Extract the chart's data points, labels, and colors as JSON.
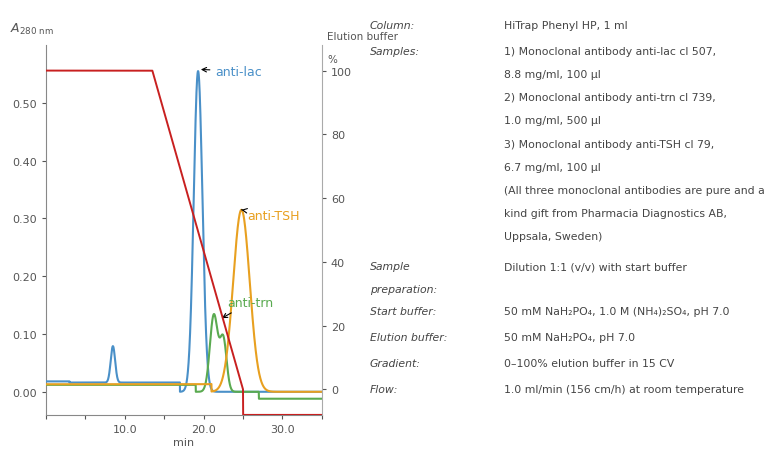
{
  "xlim": [
    0,
    35
  ],
  "ylim_left": [
    -0.04,
    0.6
  ],
  "ylim_right": [
    -8,
    108
  ],
  "xlabel": "min",
  "xticks": [
    0,
    5,
    10,
    15,
    20,
    25,
    30,
    35
  ],
  "xtick_labels": [
    "",
    "",
    "10.0",
    "",
    "20.0",
    "",
    "30.0",
    ""
  ],
  "yticks_left": [
    0.0,
    0.1,
    0.2,
    0.3,
    0.4,
    0.5
  ],
  "yticks_right": [
    0,
    20,
    40,
    60,
    80,
    100
  ],
  "bg_color": "#ffffff",
  "colors": {
    "anti_lac": "#4a90c8",
    "anti_trn": "#5aaa50",
    "anti_TSH": "#e8a020",
    "gradient": "#c82020"
  },
  "annotation_fontsize": 9.0,
  "axis_fontsize": 8.0,
  "text_color": "#555555",
  "right_panel": {
    "column_label": "Column:",
    "column_value": "HiTrap Phenyl HP, 1 ml",
    "samples_label": "Samples:",
    "samples_lines": [
      "1) Monoclonal antibody anti-lac cl 507,",
      "8.8 mg/ml, 100 μl",
      "2) Monoclonal antibody anti-trn cl 739,",
      "1.0 mg/ml, 500 μl",
      "3) Monoclonal antibody anti-TSH cl 79,",
      "6.7 mg/ml, 100 μl",
      "(All three monoclonal antibodies are pure and a",
      "kind gift from Pharmacia Diagnostics AB,",
      "Uppsala, Sweden)"
    ],
    "prep_label": "Sample\npreparation:",
    "prep_value": "Dilution 1:1 (v/v) with start buffer",
    "start_label": "Start buffer:",
    "start_value": "50 mM NaH₂PO₄, 1.0 M (NH₄)₂SO₄, pH 7.0",
    "elution_label": "Elution buffer:",
    "elution_value": "50 mM NaH₂PO₄, pH 7.0",
    "gradient_label": "Gradient:",
    "gradient_value": "0–100% elution buffer in 15 CV",
    "flow_label": "Flow:",
    "flow_value": "1.0 ml/min (156 cm/h) at room temperature"
  }
}
